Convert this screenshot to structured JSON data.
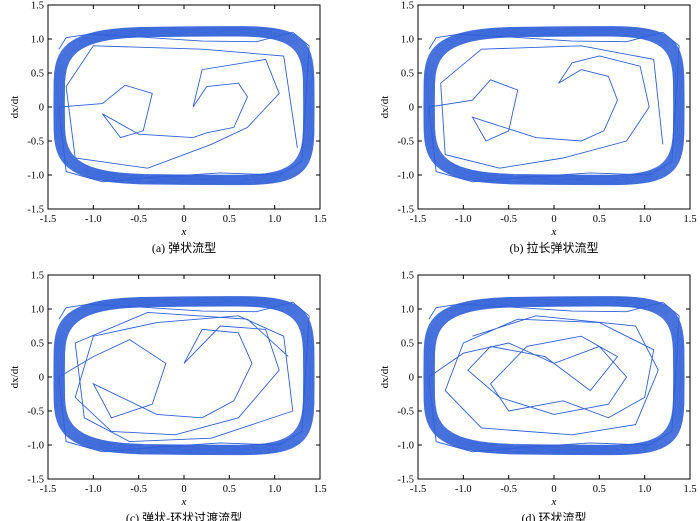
{
  "colors": {
    "trajectory": "#2f5fd8",
    "axis": "#000000",
    "background": "#ffffff"
  },
  "chart_data": [
    {
      "type": "line",
      "title": "",
      "caption": "(a) 弹状流型",
      "xlabel": "x",
      "ylabel": "dx/dt",
      "xlim": [
        -1.5,
        1.5
      ],
      "ylim": [
        -1.5,
        1.5
      ],
      "xticks": [
        "-1.5",
        "-1.0",
        "-0.5",
        "0",
        "0.5",
        "1.0",
        "1.5"
      ],
      "yticks": [
        "1.5",
        "1.0",
        "0.5",
        "0",
        "-0.5",
        "-1.0",
        "-1.5"
      ],
      "grid": false,
      "series": [
        {
          "x": [
            -1.38,
            -1.3,
            -1.05,
            -0.5,
            0.2,
            0.8,
            1.2,
            1.38,
            1.3,
            1.05,
            0.4,
            -0.3,
            -0.9,
            -1.3,
            -1.38,
            -0.9,
            -0.65,
            -0.35,
            -0.45,
            -0.7,
            -0.9,
            -0.5,
            0.1,
            0.25,
            0.55,
            0.7,
            0.6,
            0.25,
            0.1,
            0.2,
            0.9,
            1.05,
            0.7,
            0.3,
            -0.4,
            -1.2,
            -1.3,
            -1.0,
            0.2,
            1.1,
            1.25
          ],
          "y": [
            0.85,
            1.02,
            1.07,
            1.03,
            0.97,
            0.96,
            1.1,
            0.9,
            -0.8,
            -1.0,
            -0.97,
            -1.03,
            -1.1,
            -0.95,
            0.0,
            0.05,
            0.32,
            0.2,
            -0.35,
            -0.45,
            -0.1,
            -0.4,
            -0.45,
            -0.38,
            -0.3,
            0.15,
            0.35,
            0.3,
            0.0,
            0.55,
            0.7,
            0.2,
            -0.3,
            -0.55,
            -0.9,
            -0.75,
            0.3,
            0.9,
            0.85,
            0.75,
            -0.6
          ]
        }
      ]
    },
    {
      "type": "line",
      "title": "",
      "caption": "(b) 拉长弹状流型",
      "xlabel": "x",
      "ylabel": "dx/dt",
      "xlim": [
        -1.5,
        1.5
      ],
      "ylim": [
        -1.5,
        1.5
      ],
      "xticks": [
        "-1.5",
        "-1.0",
        "-0.5",
        "0",
        "0.5",
        "1.0",
        "1.5"
      ],
      "yticks": [
        "1.5",
        "1.0",
        "0.5",
        "0",
        "-0.5",
        "-1.0",
        "-1.5"
      ],
      "grid": false,
      "series": [
        {
          "x": [
            -1.38,
            -1.3,
            -1.05,
            -0.5,
            0.2,
            0.8,
            1.2,
            1.38,
            1.3,
            1.05,
            0.4,
            -0.3,
            -0.9,
            -1.3,
            -1.38,
            -0.9,
            -0.7,
            -0.4,
            -0.5,
            -0.75,
            -0.9,
            -0.2,
            0.3,
            0.55,
            0.7,
            0.6,
            0.3,
            0.05,
            0.2,
            0.5,
            0.95,
            1.05,
            0.8,
            0.1,
            -0.6,
            -1.2,
            -1.25,
            -0.8,
            0.3,
            1.1,
            1.2
          ],
          "y": [
            0.85,
            1.02,
            1.07,
            1.03,
            0.97,
            0.96,
            1.1,
            0.9,
            -0.8,
            -1.0,
            -0.97,
            -1.03,
            -1.1,
            -0.95,
            0.0,
            0.1,
            0.4,
            0.25,
            -0.35,
            -0.5,
            -0.15,
            -0.45,
            -0.5,
            -0.35,
            0.1,
            0.45,
            0.55,
            0.35,
            0.65,
            0.75,
            0.6,
            0.0,
            -0.5,
            -0.75,
            -0.9,
            -0.7,
            0.35,
            0.85,
            0.9,
            0.7,
            -0.55
          ]
        }
      ]
    },
    {
      "type": "line",
      "title": "",
      "caption": "(c) 弹状-环状过渡流型",
      "xlabel": "x",
      "ylabel": "dx/dt",
      "xlim": [
        -1.5,
        1.5
      ],
      "ylim": [
        -1.5,
        1.5
      ],
      "xticks": [
        "-1.5",
        "-1.0",
        "-0.5",
        "0",
        "0.5",
        "1.0",
        "1.5"
      ],
      "yticks": [
        "1.5",
        "1.0",
        "0.5",
        "0",
        "-0.5",
        "-1.0",
        "-1.5"
      ],
      "grid": false,
      "series": [
        {
          "x": [
            -1.38,
            -1.3,
            -1.05,
            -0.5,
            0.2,
            0.8,
            1.2,
            1.38,
            1.3,
            1.05,
            0.4,
            -0.3,
            -0.9,
            -1.3,
            -1.38,
            -1.0,
            -0.6,
            -0.2,
            -0.35,
            -0.8,
            -1.0,
            -0.3,
            0.2,
            0.55,
            0.75,
            0.6,
            0.2,
            0.0,
            0.4,
            0.9,
            1.05,
            0.6,
            -0.1,
            -0.8,
            -1.2,
            -1.0,
            -0.3,
            0.6,
            1.1,
            1.2,
            0.3,
            -0.6,
            -1.1,
            -1.2,
            -0.4,
            0.7,
            1.15
          ],
          "y": [
            0.85,
            1.02,
            1.07,
            1.03,
            0.97,
            0.96,
            1.1,
            0.9,
            -0.8,
            -1.0,
            -0.97,
            -1.03,
            -1.1,
            -0.95,
            0.0,
            0.3,
            0.55,
            0.2,
            -0.4,
            -0.6,
            -0.1,
            -0.55,
            -0.6,
            -0.35,
            0.2,
            0.65,
            0.7,
            0.2,
            0.75,
            0.7,
            0.1,
            -0.6,
            -0.85,
            -0.8,
            -0.3,
            0.6,
            0.8,
            0.9,
            0.6,
            -0.5,
            -0.9,
            -0.95,
            -0.6,
            0.5,
            0.95,
            0.85,
            0.3
          ]
        }
      ]
    },
    {
      "type": "line",
      "title": "",
      "caption": "(d) 环状流型",
      "xlabel": "x",
      "ylabel": "dx/dt",
      "xlim": [
        -1.5,
        1.5
      ],
      "ylim": [
        -1.5,
        1.5
      ],
      "xticks": [
        "-1.5",
        "-1.0",
        "-0.5",
        "0",
        "0.5",
        "1.0",
        "1.5"
      ],
      "yticks": [
        "1.5",
        "1.0",
        "0.5",
        "0",
        "-0.5",
        "-1.0",
        "-1.5"
      ],
      "grid": false,
      "series": [
        {
          "x": [
            -1.38,
            -1.3,
            -1.05,
            -0.5,
            0.2,
            0.8,
            1.2,
            1.38,
            1.3,
            1.05,
            0.4,
            -0.3,
            -0.9,
            -1.3,
            -1.38,
            -1.0,
            -0.5,
            0.0,
            0.5,
            0.8,
            0.6,
            0.0,
            -0.6,
            -0.95,
            -0.7,
            -0.1,
            0.4,
            0.7,
            0.3,
            -0.3,
            -0.7,
            -0.5,
            0.1,
            0.6,
            1.0,
            1.1,
            0.5,
            -0.4,
            -1.0,
            -1.2,
            -0.8,
            0.2,
            0.9,
            1.15,
            0.9,
            -0.2,
            -0.9
          ],
          "y": [
            0.85,
            1.02,
            1.07,
            1.03,
            0.97,
            0.96,
            1.1,
            0.9,
            -0.8,
            -1.0,
            -0.97,
            -1.03,
            -1.1,
            -0.95,
            0.0,
            0.35,
            0.5,
            0.2,
            0.45,
            0.0,
            -0.4,
            -0.55,
            -0.3,
            0.1,
            0.45,
            0.3,
            -0.2,
            0.3,
            0.6,
            0.45,
            -0.1,
            -0.5,
            -0.35,
            -0.6,
            -0.3,
            0.4,
            0.8,
            0.85,
            0.5,
            -0.2,
            -0.75,
            -0.85,
            -0.7,
            0.1,
            0.75,
            0.9,
            0.6
          ]
        }
      ]
    }
  ]
}
